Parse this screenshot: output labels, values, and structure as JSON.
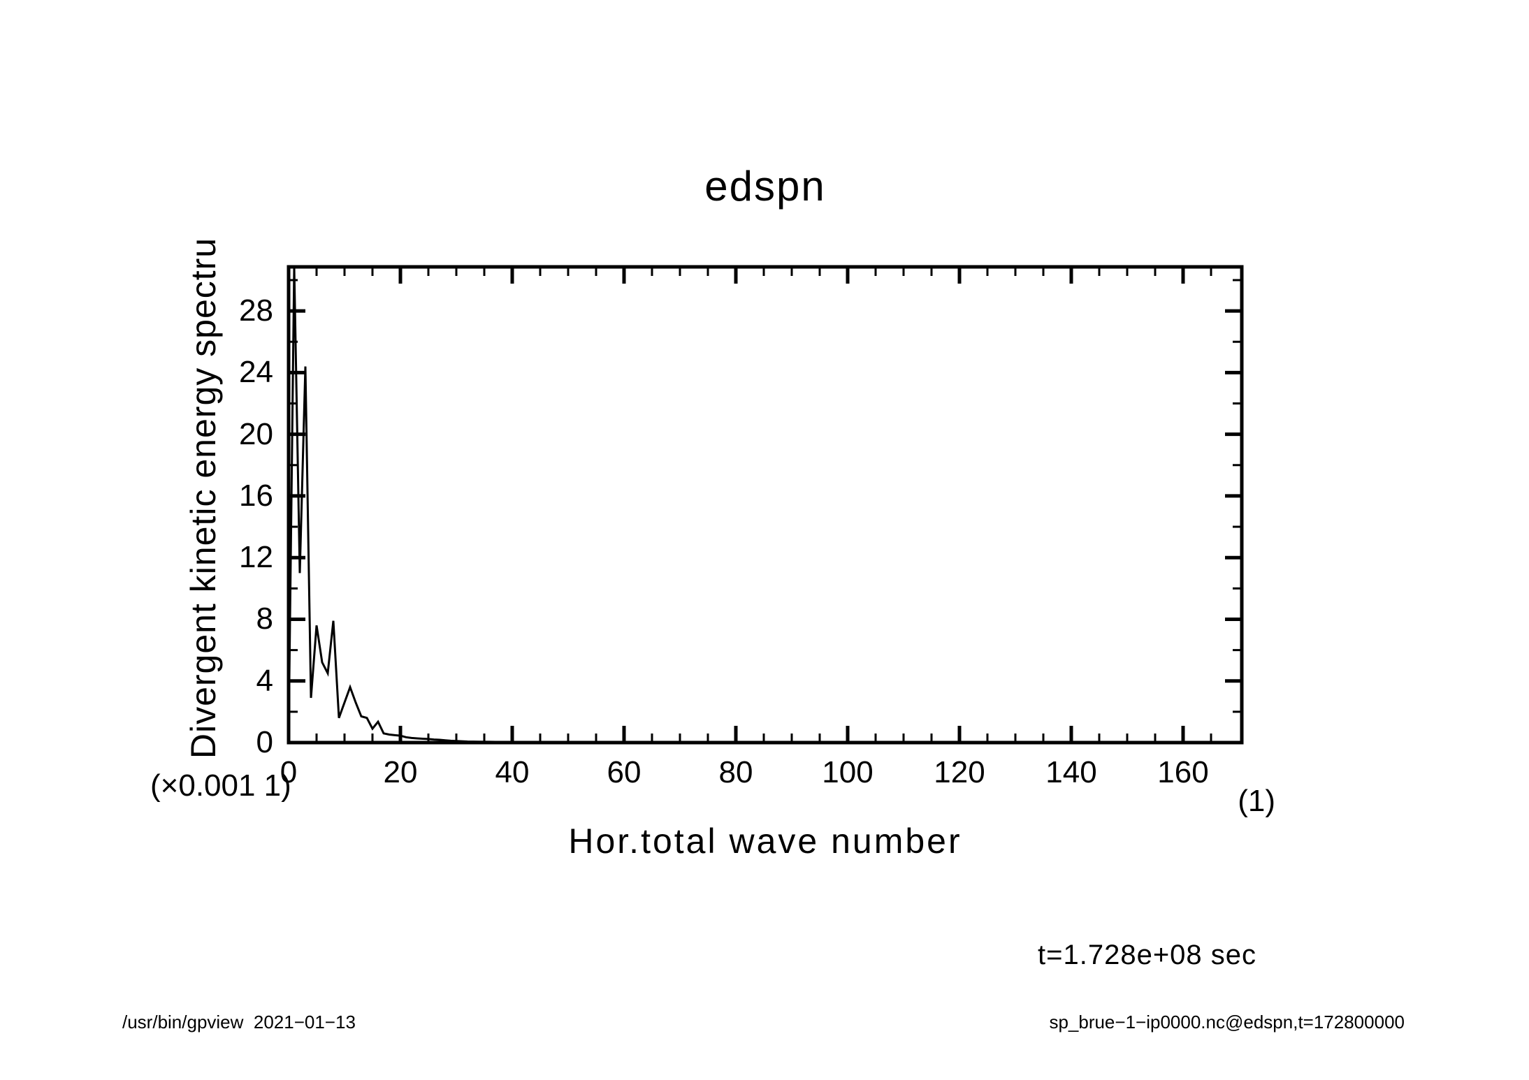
{
  "page": {
    "background_color": "#ffffff",
    "foreground_color": "#000000"
  },
  "chart_data": {
    "type": "line",
    "title": "edspn",
    "xlabel": "Hor.total wave number",
    "ylabel": "Divergent kinetic energy spectru",
    "y_scale_label": "(×0.001 1)",
    "x_unit_label": "(1)",
    "xlim": [
      0,
      170.5
    ],
    "ylim": [
      0,
      30.86
    ],
    "x_major_ticks": [
      0,
      20,
      40,
      60,
      80,
      100,
      120,
      140,
      160
    ],
    "x_major_step": 20,
    "x_minor_step": 5,
    "y_major_ticks": [
      0,
      4,
      8,
      12,
      16,
      20,
      24,
      28
    ],
    "y_major_step": 4,
    "y_minor_step": 2,
    "grid": false,
    "legend": "none",
    "line_color": "#000000",
    "series": [
      {
        "name": "edspn",
        "note": "y values in units of 0.001; peak at wavenumber 1 is clipped by the axis frame top",
        "x": [
          0,
          1,
          2,
          3,
          4,
          5,
          6,
          7,
          8,
          9,
          10,
          11,
          12,
          13,
          14,
          15,
          16,
          17,
          18,
          19,
          20,
          21,
          22,
          23,
          24,
          25,
          26,
          27,
          28,
          29,
          30,
          32,
          34,
          36,
          38,
          40,
          45,
          50,
          55,
          60,
          70,
          80,
          90,
          100,
          110,
          120,
          130,
          140,
          150,
          160,
          170
        ],
        "y": [
          0.3,
          33,
          11,
          24.4,
          2.9,
          7.6,
          5.2,
          4.5,
          7.9,
          1.6,
          2.6,
          3.6,
          2.6,
          1.7,
          1.6,
          0.9,
          1.35,
          0.6,
          0.52,
          0.48,
          0.45,
          0.35,
          0.3,
          0.27,
          0.25,
          0.23,
          0.2,
          0.18,
          0.15,
          0.12,
          0.1,
          0.07,
          0.06,
          0.05,
          0.04,
          0.03,
          0.02,
          0.015,
          0.012,
          0.01,
          0.008,
          0.006,
          0.005,
          0.004,
          0.003,
          0.003,
          0.002,
          0.002,
          0.002,
          0.001,
          0.001
        ]
      }
    ]
  },
  "annotations": {
    "time_label": "t=1.728e+08 sec"
  },
  "footer": {
    "left": "/usr/bin/gpview  2021−01−13",
    "right": "sp_brue−1−ip0000.nc@edspn,t=172800000"
  }
}
